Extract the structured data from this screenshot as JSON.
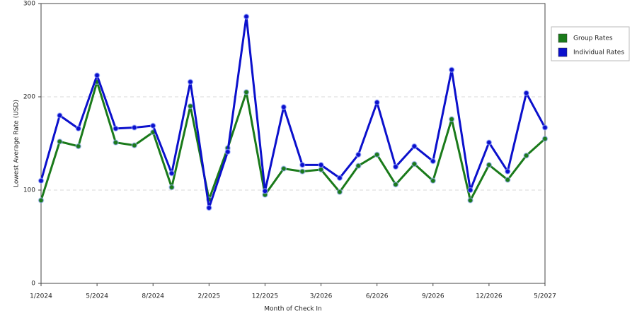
{
  "chart_data": {
    "type": "line",
    "x_label": "Month of Check In",
    "y_label": "Lowest Average Rate (USD)",
    "categories": [
      "1/2024",
      null,
      null,
      "5/2024",
      null,
      null,
      "8/2024",
      null,
      null,
      "2/2025",
      null,
      null,
      "12/2025",
      null,
      null,
      "3/2026",
      null,
      null,
      "6/2026",
      null,
      null,
      "9/2026",
      null,
      null,
      "12/2026",
      null,
      null,
      "5/2027"
    ],
    "series": [
      {
        "name": "Group Rates",
        "color": "#1a7a1a",
        "values": [
          89,
          152,
          147,
          216,
          151,
          148,
          162,
          103,
          190,
          90,
          145,
          205,
          95,
          123,
          120,
          122,
          98,
          126,
          138,
          106,
          128,
          110,
          176,
          89,
          127,
          111,
          137,
          155
        ]
      },
      {
        "name": "Individual Rates",
        "color": "#0b10cc",
        "values": [
          110,
          180,
          166,
          223,
          166,
          167,
          169,
          118,
          216,
          81,
          141,
          286,
          99,
          189,
          127,
          127,
          113,
          138,
          194,
          125,
          147,
          131,
          229,
          100,
          151,
          120,
          204,
          167
        ]
      }
    ],
    "ylim": [
      0,
      300
    ],
    "yticks": [
      0,
      100,
      200,
      300
    ],
    "grid": true,
    "legend": "right"
  }
}
